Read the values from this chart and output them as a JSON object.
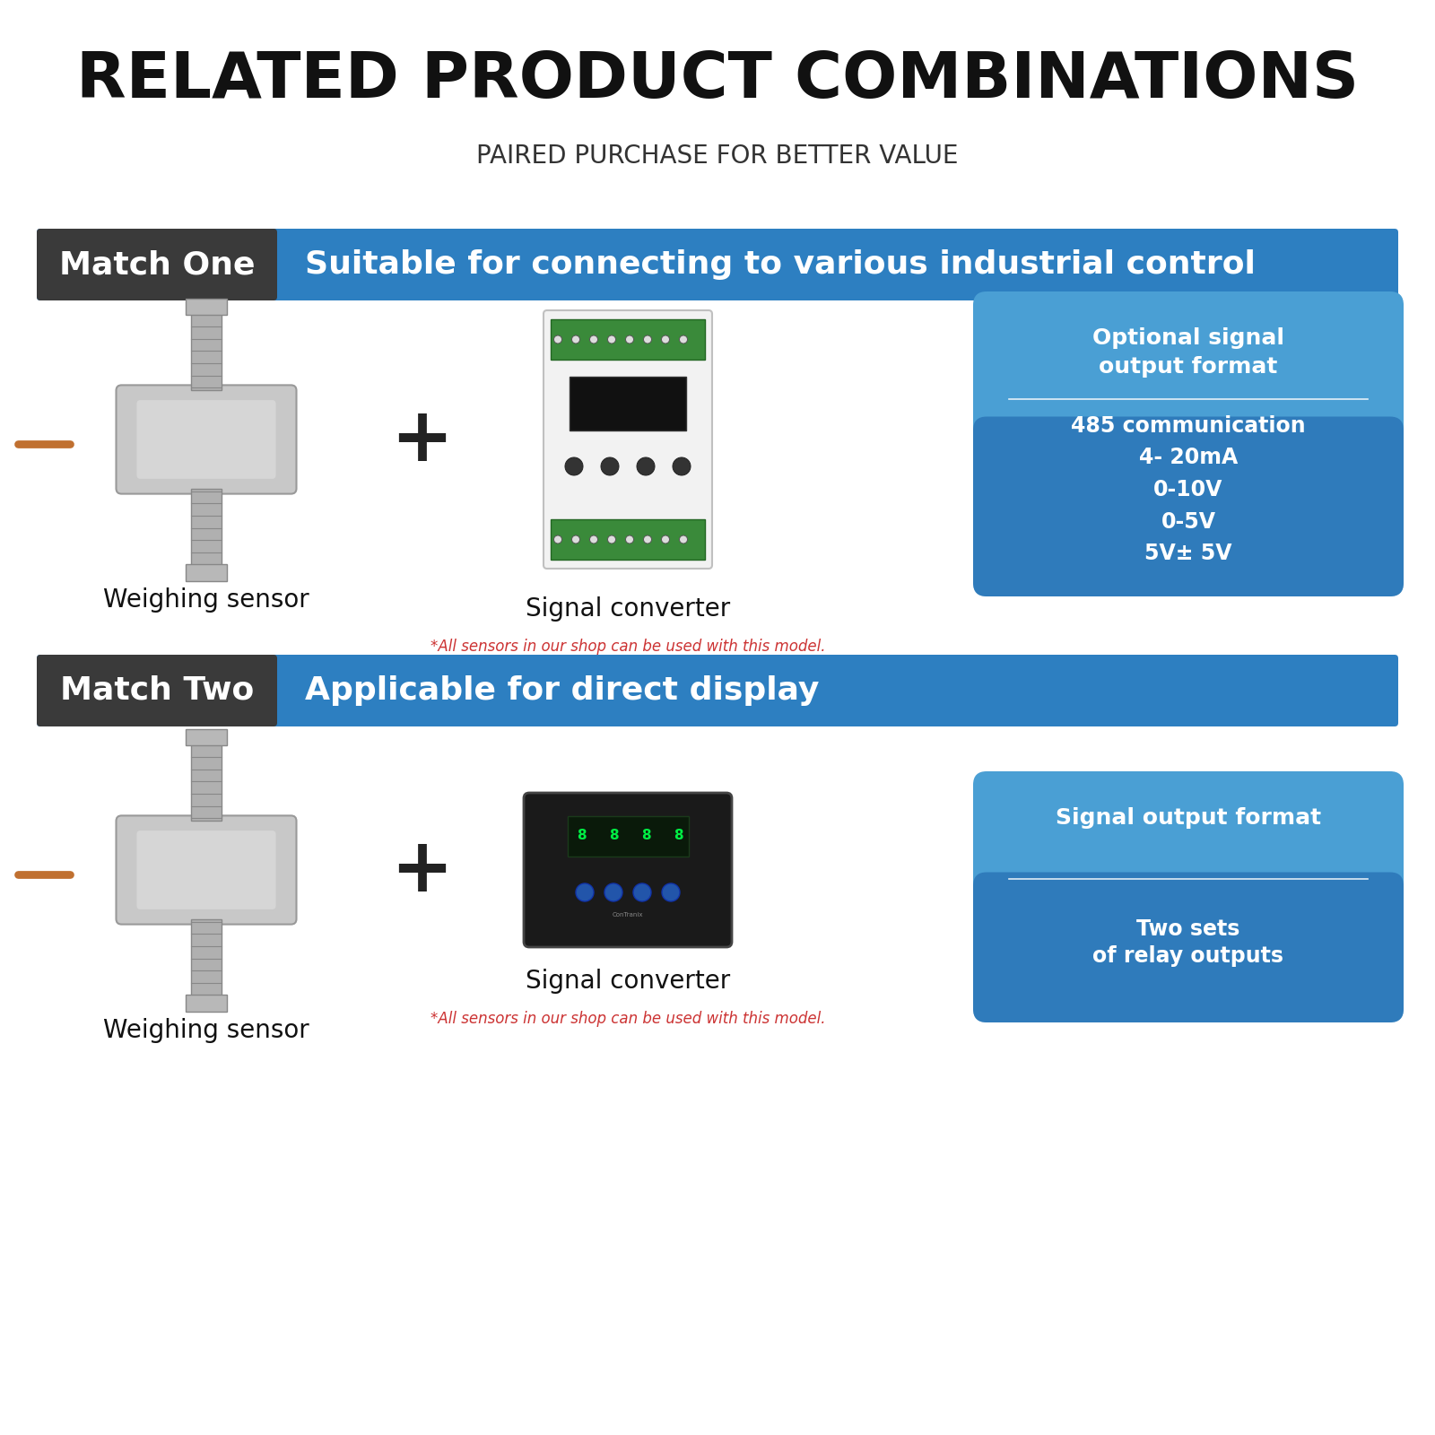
{
  "bg_color": "#ffffff",
  "title": "RELATED PRODUCT COMBINATIONS",
  "subtitle": "PAIRED PURCHASE FOR BETTER VALUE",
  "title_fontsize": 52,
  "subtitle_fontsize": 20,
  "match_one_label": "Match One",
  "match_one_desc": "Suitable for connecting to various industrial control",
  "match_two_label": "Match Two",
  "match_two_desc": "Applicable for direct display",
  "label_bg": "#3a3a3a",
  "banner_color": "#2d7fc1",
  "banner_text_color": "#ffffff",
  "info_box_color_top": "#4a9fd4",
  "info_box_color_bot": "#1a5fa8",
  "info_box_title1": "Optional signal\noutput format",
  "info_box_items1": [
    "485 communication",
    "4- 20mA",
    "0-10V",
    "0-5V",
    "5V± 5V"
  ],
  "info_box_title2": "Signal output format",
  "info_box_items2": [
    "Two sets\nof relay outputs"
  ],
  "sensor_label": "Weighing sensor",
  "converter_label": "Signal converter",
  "note": "*All sensors in our shop can be used with this model.",
  "plus_color": "#222222",
  "label_fontsize": 20,
  "banner_label_fontsize": 26,
  "banner_desc_fontsize": 26,
  "note_color": "#cc3333",
  "note_fontsize": 12,
  "info_title_fontsize": 18,
  "info_item_fontsize": 17
}
